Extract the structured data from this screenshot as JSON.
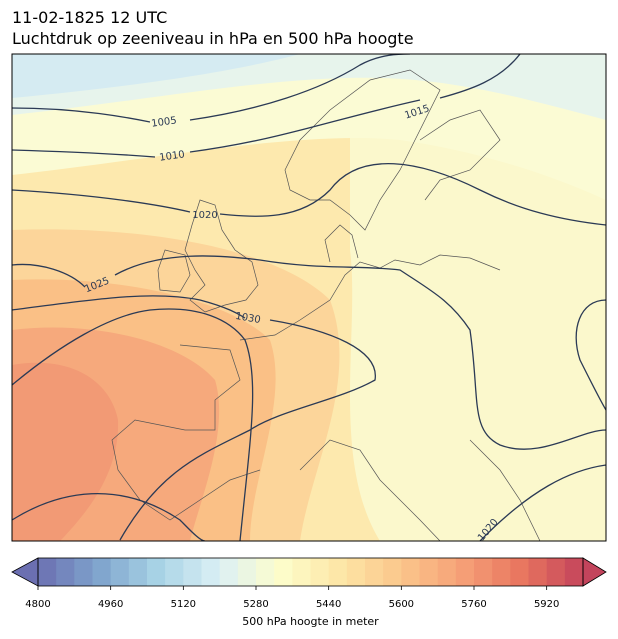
{
  "header": {
    "title_line1": "11-02-1825 12 UTC",
    "title_line2": "Luchtdruk op zeeniveau in hPa en 500 hPa hoogte"
  },
  "map": {
    "isobar_labels": [
      "1005",
      "1010",
      "1015",
      "1020",
      "1025",
      "1030",
      "1020"
    ]
  },
  "colorbar": {
    "label": "500 hPa hoogte in meter",
    "range": [
      4800,
      6000
    ],
    "step": 40,
    "ticks": [
      4800,
      4960,
      5120,
      5280,
      5440,
      5600,
      5760,
      5920
    ],
    "colors": [
      "#6b6fb1",
      "#7fa4cd",
      "#a9d4e6",
      "#dcf0f5",
      "#fdfdcb",
      "#fde6a6",
      "#fbc68b",
      "#f6a077",
      "#e8755f",
      "#c3445c"
    ],
    "extend": "both"
  }
}
